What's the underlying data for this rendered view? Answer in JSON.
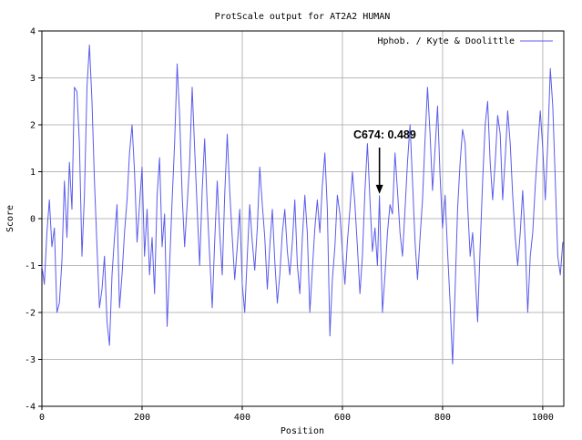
{
  "chart_data": {
    "type": "line",
    "title": "ProtScale output for AT2A2 HUMAN",
    "xlabel": "Position",
    "ylabel": "Score",
    "xlim": [
      0,
      1042
    ],
    "ylim": [
      -4,
      4
    ],
    "xticks": [
      0,
      200,
      400,
      600,
      800,
      1000
    ],
    "yticks": [
      -4,
      -3,
      -2,
      -1,
      0,
      1,
      2,
      3,
      4
    ],
    "grid": true,
    "legend_position": "top-right",
    "colors": {
      "series": "#5b5bea",
      "grid": "#b8b8b8",
      "axis": "#000000",
      "annotation": "#000000"
    },
    "series": [
      {
        "name": "Hphob. / Kyte & Doolittle",
        "points": [
          [
            0,
            -1.0
          ],
          [
            5,
            -1.4
          ],
          [
            10,
            -0.3
          ],
          [
            15,
            0.4
          ],
          [
            20,
            -0.6
          ],
          [
            25,
            -0.2
          ],
          [
            30,
            -2.0
          ],
          [
            35,
            -1.8
          ],
          [
            40,
            -0.9
          ],
          [
            45,
            0.8
          ],
          [
            50,
            -0.4
          ],
          [
            55,
            1.2
          ],
          [
            60,
            0.2
          ],
          [
            65,
            2.8
          ],
          [
            70,
            2.7
          ],
          [
            75,
            1.6
          ],
          [
            80,
            -0.8
          ],
          [
            85,
            0.5
          ],
          [
            90,
            2.8
          ],
          [
            95,
            3.7
          ],
          [
            100,
            2.5
          ],
          [
            105,
            0.8
          ],
          [
            110,
            -0.6
          ],
          [
            115,
            -1.9
          ],
          [
            120,
            -1.5
          ],
          [
            125,
            -0.8
          ],
          [
            130,
            -2.2
          ],
          [
            135,
            -2.7
          ],
          [
            140,
            -1.2
          ],
          [
            145,
            -0.4
          ],
          [
            150,
            0.3
          ],
          [
            155,
            -1.9
          ],
          [
            160,
            -1.2
          ],
          [
            165,
            -0.3
          ],
          [
            170,
            0.4
          ],
          [
            175,
            1.4
          ],
          [
            180,
            2.0
          ],
          [
            185,
            1.0
          ],
          [
            190,
            -0.5
          ],
          [
            195,
            0.3
          ],
          [
            200,
            1.1
          ],
          [
            205,
            -0.8
          ],
          [
            210,
            0.2
          ],
          [
            215,
            -1.2
          ],
          [
            220,
            -0.4
          ],
          [
            225,
            -1.6
          ],
          [
            230,
            0.5
          ],
          [
            235,
            1.3
          ],
          [
            240,
            -0.6
          ],
          [
            245,
            0.1
          ],
          [
            250,
            -2.3
          ],
          [
            255,
            -1.0
          ],
          [
            260,
            0.4
          ],
          [
            265,
            1.6
          ],
          [
            270,
            3.3
          ],
          [
            275,
            2.2
          ],
          [
            280,
            0.5
          ],
          [
            285,
            -0.6
          ],
          [
            290,
            0.3
          ],
          [
            295,
            1.2
          ],
          [
            300,
            2.8
          ],
          [
            305,
            1.5
          ],
          [
            310,
            0.2
          ],
          [
            315,
            -1.0
          ],
          [
            320,
            0.6
          ],
          [
            325,
            1.7
          ],
          [
            330,
            0.3
          ],
          [
            335,
            -0.8
          ],
          [
            340,
            -1.9
          ],
          [
            345,
            -0.5
          ],
          [
            350,
            0.8
          ],
          [
            355,
            -0.3
          ],
          [
            360,
            -1.2
          ],
          [
            365,
            0.5
          ],
          [
            370,
            1.8
          ],
          [
            375,
            0.6
          ],
          [
            380,
            -0.4
          ],
          [
            385,
            -1.3
          ],
          [
            390,
            -0.6
          ],
          [
            395,
            0.2
          ],
          [
            400,
            -1.4
          ],
          [
            405,
            -2.0
          ],
          [
            410,
            -0.8
          ],
          [
            415,
            0.3
          ],
          [
            420,
            -0.5
          ],
          [
            425,
            -1.1
          ],
          [
            430,
            -0.2
          ],
          [
            435,
            1.1
          ],
          [
            440,
            0.3
          ],
          [
            445,
            -0.4
          ],
          [
            450,
            -1.5
          ],
          [
            455,
            -0.6
          ],
          [
            460,
            0.2
          ],
          [
            465,
            -0.9
          ],
          [
            470,
            -1.8
          ],
          [
            475,
            -1.2
          ],
          [
            480,
            -0.3
          ],
          [
            485,
            0.2
          ],
          [
            490,
            -0.7
          ],
          [
            495,
            -1.2
          ],
          [
            500,
            -0.5
          ],
          [
            505,
            0.4
          ],
          [
            510,
            -1.0
          ],
          [
            515,
            -1.6
          ],
          [
            520,
            -0.4
          ],
          [
            525,
            0.5
          ],
          [
            530,
            -0.3
          ],
          [
            535,
            -2.0
          ],
          [
            540,
            -1.1
          ],
          [
            545,
            -0.2
          ],
          [
            550,
            0.4
          ],
          [
            555,
            -0.3
          ],
          [
            560,
            0.7
          ],
          [
            565,
            1.4
          ],
          [
            570,
            0.2
          ],
          [
            575,
            -2.5
          ],
          [
            580,
            -1.3
          ],
          [
            585,
            -0.6
          ],
          [
            590,
            0.5
          ],
          [
            595,
            0.1
          ],
          [
            600,
            -0.7
          ],
          [
            605,
            -1.4
          ],
          [
            610,
            -0.5
          ],
          [
            615,
            0.2
          ],
          [
            620,
            1.0
          ],
          [
            625,
            0.3
          ],
          [
            630,
            -0.6
          ],
          [
            635,
            -1.6
          ],
          [
            640,
            -0.8
          ],
          [
            645,
            0.6
          ],
          [
            650,
            1.6
          ],
          [
            655,
            0.4
          ],
          [
            660,
            -0.7
          ],
          [
            665,
            -0.2
          ],
          [
            670,
            -1.0
          ],
          [
            674,
            0.489
          ],
          [
            680,
            -2.0
          ],
          [
            685,
            -1.2
          ],
          [
            690,
            -0.3
          ],
          [
            695,
            0.3
          ],
          [
            700,
            0.1
          ],
          [
            705,
            1.4
          ],
          [
            710,
            0.6
          ],
          [
            715,
            -0.3
          ],
          [
            720,
            -0.8
          ],
          [
            725,
            0.2
          ],
          [
            730,
            1.2
          ],
          [
            735,
            2.0
          ],
          [
            740,
            0.8
          ],
          [
            745,
            -0.5
          ],
          [
            750,
            -1.3
          ],
          [
            755,
            -0.4
          ],
          [
            760,
            0.4
          ],
          [
            765,
            1.7
          ],
          [
            770,
            2.8
          ],
          [
            775,
            1.8
          ],
          [
            780,
            0.6
          ],
          [
            785,
            1.5
          ],
          [
            790,
            2.4
          ],
          [
            795,
            0.9
          ],
          [
            800,
            -0.2
          ],
          [
            805,
            0.5
          ],
          [
            810,
            -0.7
          ],
          [
            815,
            -1.8
          ],
          [
            820,
            -3.1
          ],
          [
            825,
            -1.5
          ],
          [
            830,
            0.2
          ],
          [
            835,
            1.2
          ],
          [
            840,
            1.9
          ],
          [
            845,
            1.6
          ],
          [
            850,
            0.3
          ],
          [
            855,
            -0.8
          ],
          [
            860,
            -0.3
          ],
          [
            865,
            -1.2
          ],
          [
            870,
            -2.2
          ],
          [
            875,
            -0.6
          ],
          [
            880,
            0.8
          ],
          [
            885,
            2.0
          ],
          [
            890,
            2.5
          ],
          [
            895,
            1.2
          ],
          [
            900,
            0.4
          ],
          [
            905,
            1.2
          ],
          [
            910,
            2.2
          ],
          [
            915,
            1.8
          ],
          [
            920,
            0.4
          ],
          [
            925,
            1.3
          ],
          [
            930,
            2.3
          ],
          [
            935,
            1.6
          ],
          [
            940,
            0.5
          ],
          [
            945,
            -0.4
          ],
          [
            950,
            -1.0
          ],
          [
            955,
            -0.3
          ],
          [
            960,
            0.6
          ],
          [
            965,
            -0.5
          ],
          [
            970,
            -2.0
          ],
          [
            975,
            -0.8
          ],
          [
            980,
            -0.3
          ],
          [
            985,
            0.7
          ],
          [
            990,
            1.5
          ],
          [
            995,
            2.3
          ],
          [
            1000,
            1.5
          ],
          [
            1005,
            0.4
          ],
          [
            1010,
            1.6
          ],
          [
            1015,
            3.2
          ],
          [
            1020,
            2.4
          ],
          [
            1025,
            0.8
          ],
          [
            1030,
            -0.8
          ],
          [
            1035,
            -1.2
          ],
          [
            1040,
            -0.5
          ]
        ]
      }
    ],
    "annotation": {
      "label": "C674: 0.489",
      "x": 674,
      "y": 0.489
    }
  }
}
